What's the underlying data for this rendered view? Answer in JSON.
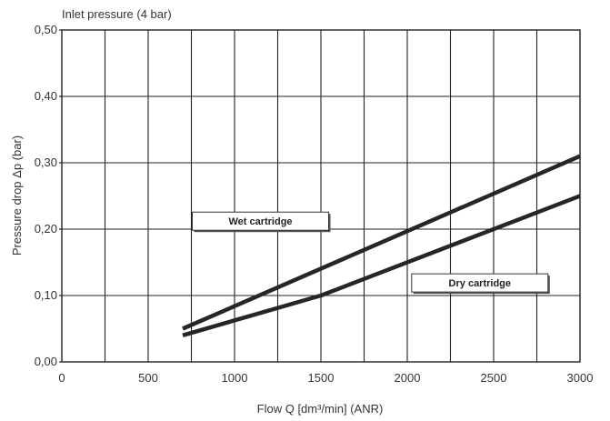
{
  "chart_data": {
    "type": "line",
    "title": "Inlet pressure (4 bar)",
    "xlabel": "Flow Q [dm³/min] (ANR)",
    "ylabel": "Pressure drop Δp (bar)",
    "xlim": [
      0,
      3000
    ],
    "ylim": [
      0,
      0.5
    ],
    "x_ticks": [
      "0",
      "500",
      "1000",
      "1500",
      "2000",
      "2500",
      "3000"
    ],
    "y_ticks": [
      "0,00",
      "0,10",
      "0,20",
      "0,30",
      "0,40",
      "0,50"
    ],
    "grid": true,
    "series": [
      {
        "name": "Wet cartridge",
        "x": [
          700,
          3000
        ],
        "y": [
          0.05,
          0.31
        ]
      },
      {
        "name": "Dry cartridge",
        "x": [
          700,
          1500,
          3000
        ],
        "y": [
          0.04,
          0.1,
          0.25
        ]
      }
    ],
    "annotations": [
      {
        "text": "Wet cartridge",
        "x": 1150,
        "y": 0.212
      },
      {
        "text": "Dry cartridge",
        "x": 2420,
        "y": 0.119
      }
    ]
  }
}
